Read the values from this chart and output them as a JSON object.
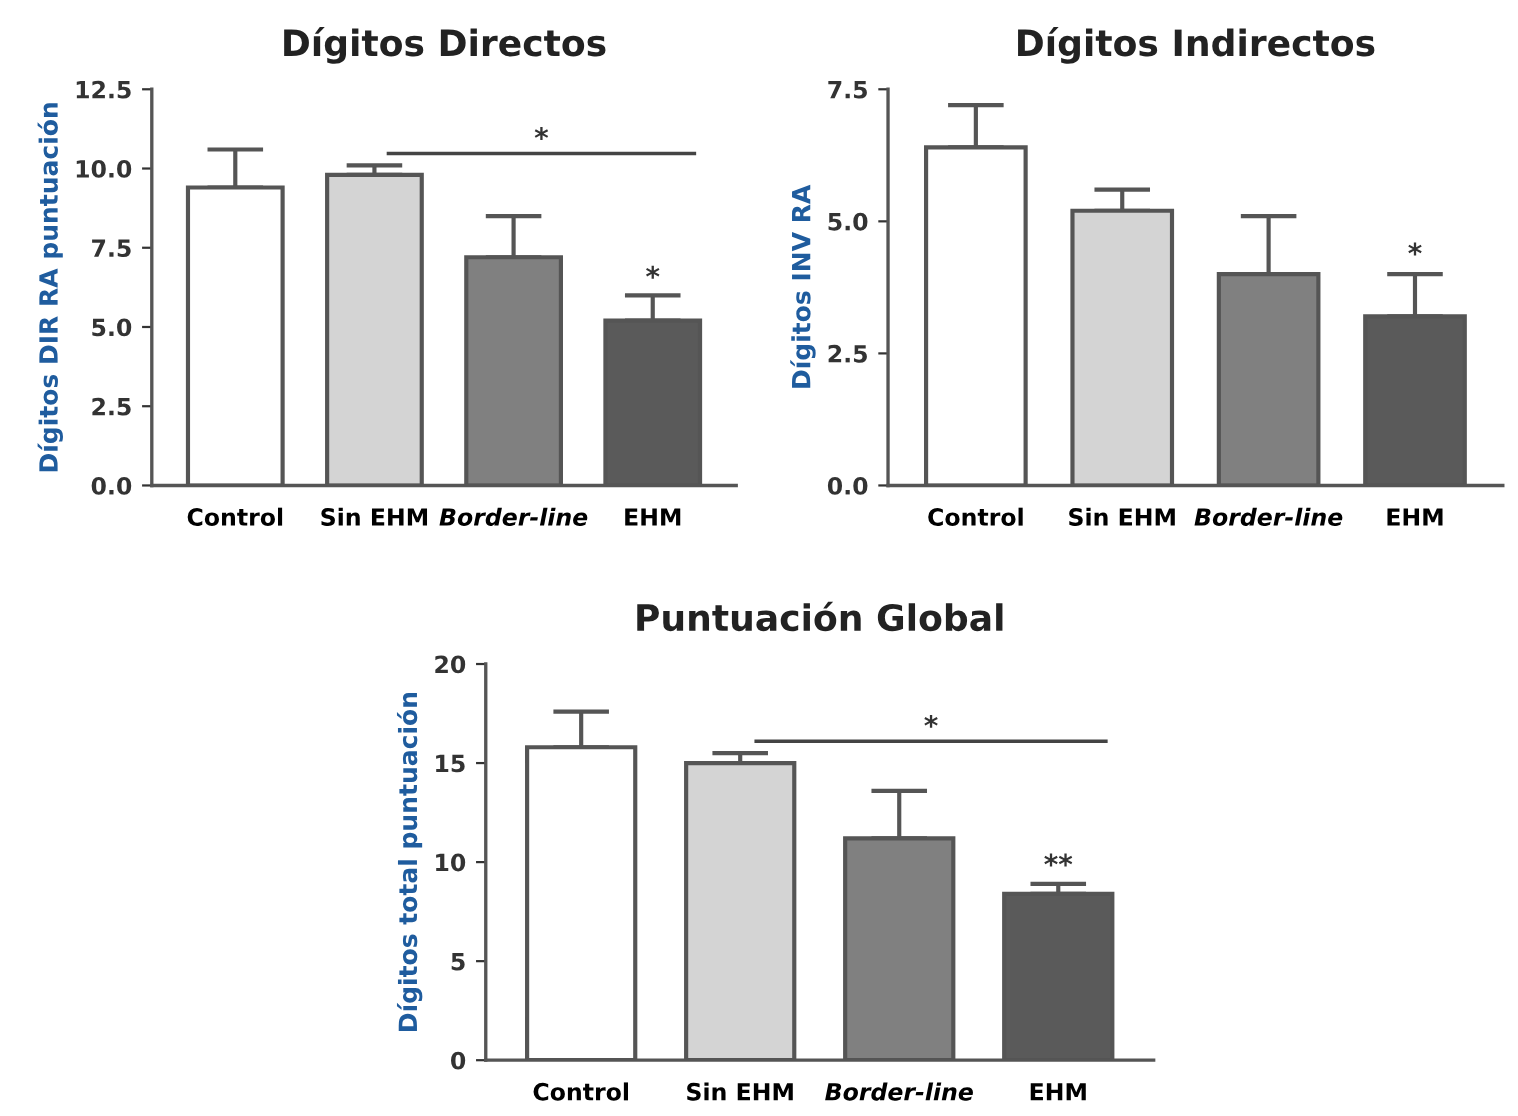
{
  "chart_data": [
    {
      "type": "bar",
      "title": "Dígitos Directos",
      "ylabel": "Dígitos DIR RA puntuación",
      "categories": [
        "Control",
        "Sin EHM",
        "Border-line",
        "EHM"
      ],
      "values": [
        9.4,
        9.8,
        7.2,
        5.2
      ],
      "colors": [
        "#ffffff",
        "#d4d4d4",
        "#808080",
        "#5a5a5a"
      ],
      "errors": [
        [
          9.4,
          10.6
        ],
        [
          9.8,
          10.1
        ],
        [
          7.2,
          8.5
        ],
        [
          5.2,
          6.0
        ]
      ],
      "ylim": [
        0,
        12.5
      ],
      "yticks": [
        {
          "value": 0,
          "label": "0.0"
        },
        2.5,
        {
          "value": 5,
          "label": "5.0"
        },
        7.5,
        {
          "value": 10,
          "label": "10.0"
        },
        12.5
      ],
      "grid": false,
      "annotations": [
        "*",
        {
          "text": "*",
          "x": "EHM",
          "y": 6.1
        }
      ]
    },
    {
      "type": "bar",
      "title": "Dígitos Indirectos",
      "ylabel": "Dígitos INV RA",
      "categories": [
        "Control",
        "Sin EHM",
        "Border-line",
        "EHM"
      ],
      "values": [
        6.4,
        5.2,
        4.0,
        3.2
      ],
      "colors": [
        "#ffffff",
        "#d4d4d4",
        "#808080",
        "#5a5a5a"
      ],
      "errors": [
        [
          6.4,
          7.2
        ],
        [
          5.2,
          5.6
        ],
        [
          4.0,
          5.1
        ],
        [
          3.2,
          4.0
        ]
      ],
      "ylim": [
        0,
        7.5
      ],
      "yticks": [
        {
          "value": 0,
          "label": "0.0"
        },
        2.5,
        {
          "value": 5,
          "label": "5.0"
        },
        7.5
      ],
      "grid": false,
      "annotations": [
        {
          "text": "*",
          "x": "EHM",
          "y": 4.1
        }
      ]
    },
    {
      "type": "bar",
      "title": "Puntuación Global",
      "ylabel": "Dígitos total puntuación",
      "categories": [
        "Control",
        "Sin EHM",
        "Border-line",
        "EHM"
      ],
      "values": [
        15.8,
        15.0,
        11.2,
        8.4
      ],
      "colors": [
        "#ffffff",
        "#d4d4d4",
        "#808080",
        "#5a5a5a"
      ],
      "errors": [
        [
          15.8,
          17.6
        ],
        [
          15.0,
          15.5
        ],
        [
          11.2,
          13.6
        ],
        [
          8.4,
          8.9
        ]
      ],
      "ylim": [
        0,
        20
      ],
      "yticks": [
        0,
        5,
        10,
        15,
        20
      ],
      "grid": false,
      "annotations": [
        "*",
        {
          "text": "**",
          "x": "EHM",
          "y": 9.1
        }
      ]
    }
  ]
}
